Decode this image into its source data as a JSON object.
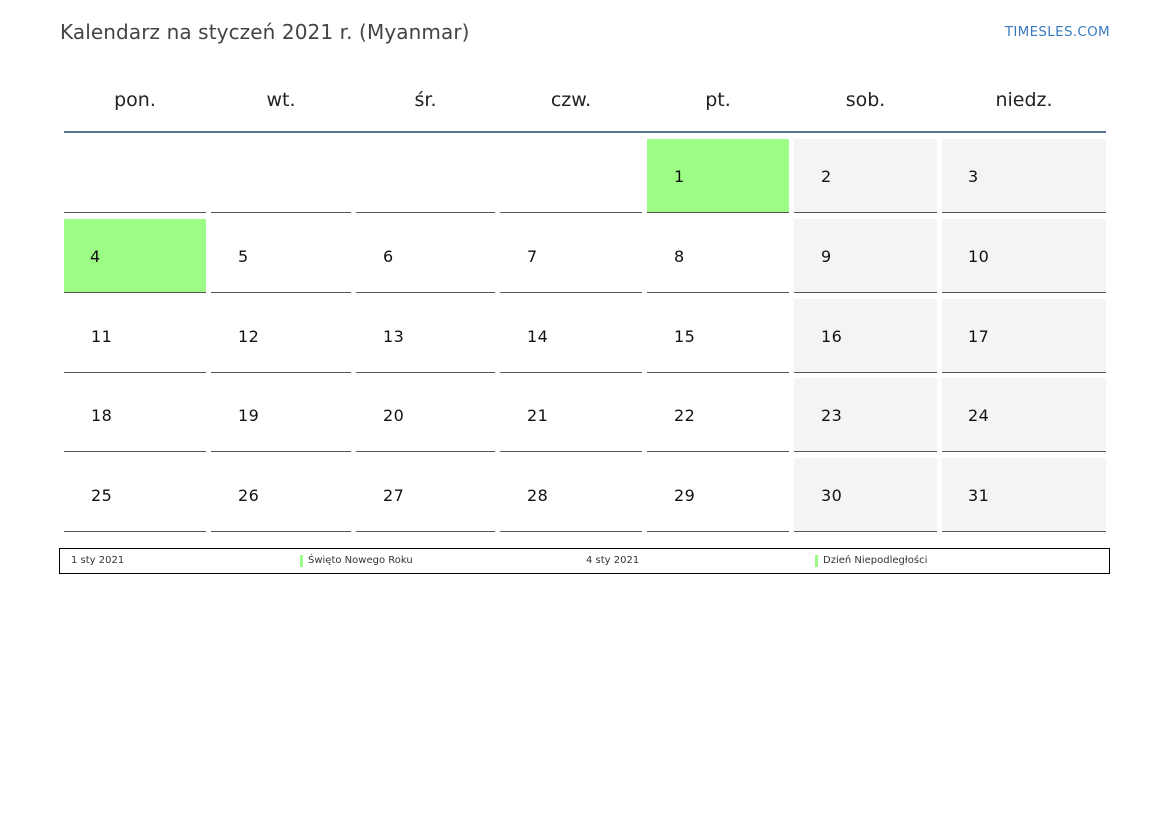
{
  "header": {
    "title": "Kalendarz na styczeń 2021 r. (Myanmar)",
    "site": "TIMESLES.COM"
  },
  "weekdays": [
    "pon.",
    "wt.",
    "śr.",
    "czw.",
    "pt.",
    "sob.",
    "niedz."
  ],
  "colors": {
    "holiday": "#9cfc86",
    "weekend": "#f4f4f4",
    "header_line": "#5b7596",
    "site_link": "#3a7bbf"
  },
  "weeks": [
    [
      null,
      null,
      null,
      null,
      {
        "day": "1",
        "holiday": true
      },
      {
        "day": "2"
      },
      {
        "day": "3"
      }
    ],
    [
      {
        "day": "4",
        "holiday": true
      },
      {
        "day": "5"
      },
      {
        "day": "6"
      },
      {
        "day": "7"
      },
      {
        "day": "8"
      },
      {
        "day": "9"
      },
      {
        "day": "10"
      }
    ],
    [
      {
        "day": "11"
      },
      {
        "day": "12"
      },
      {
        "day": "13"
      },
      {
        "day": "14"
      },
      {
        "day": "15"
      },
      {
        "day": "16"
      },
      {
        "day": "17"
      }
    ],
    [
      {
        "day": "18"
      },
      {
        "day": "19"
      },
      {
        "day": "20"
      },
      {
        "day": "21"
      },
      {
        "day": "22"
      },
      {
        "day": "23"
      },
      {
        "day": "24"
      }
    ],
    [
      {
        "day": "25"
      },
      {
        "day": "26"
      },
      {
        "day": "27"
      },
      {
        "day": "28"
      },
      {
        "day": "29"
      },
      {
        "day": "30"
      },
      {
        "day": "31"
      }
    ]
  ],
  "legend": [
    {
      "date": "1 sty 2021",
      "name": "Święto Nowego Roku"
    },
    {
      "date": "4 sty 2021",
      "name": "Dzień Niepodległości"
    }
  ]
}
